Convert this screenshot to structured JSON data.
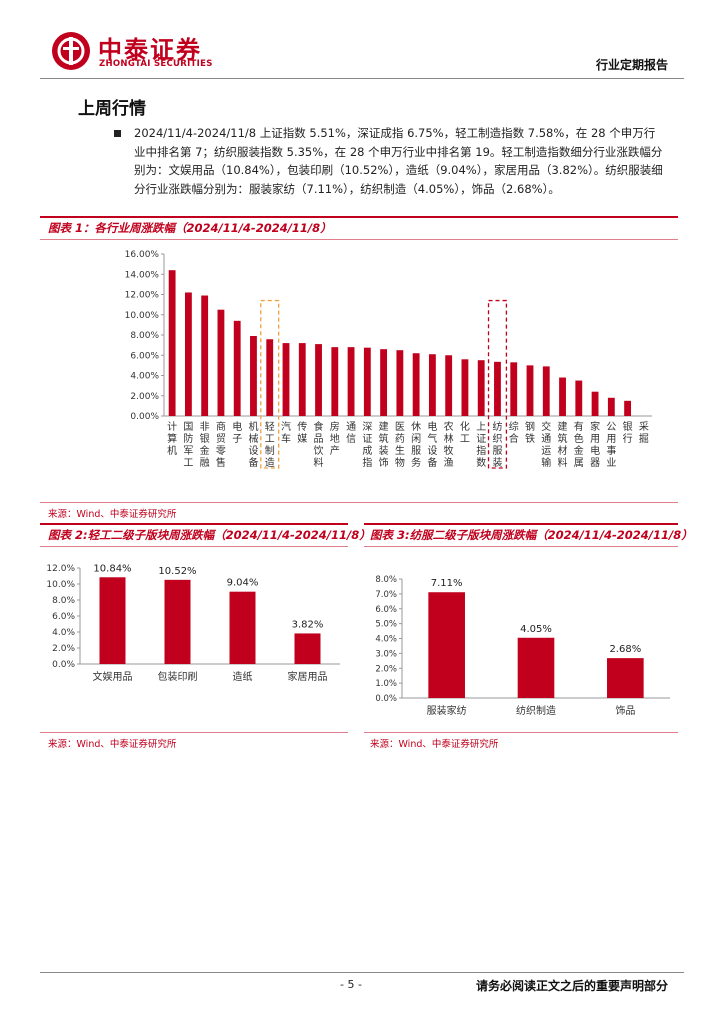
{
  "header": {
    "brand_cn": "中泰证券",
    "brand_en": "ZHONGTAI SECURITIES",
    "report_type": "行业定期报告",
    "brand_color": "#c0001d"
  },
  "section": {
    "title": "上周行情",
    "paragraph": "2024/11/4-2024/11/8 上证指数 5.51%，深证成指 6.75%，轻工制造指数 7.58%，在 28 个申万行业中排名第 7；纺织服装指数 5.35%，在 28 个申万行业中排名第 19。轻工制造指数细分行业涨跌幅分别为：文娱用品（10.84%），包装印刷（10.52%），造纸（9.04%），家居用品（3.82%）。纺织服装细分行业涨跌幅分别为：服装家纺（7.11%），纺织制造（4.05%），饰品（2.68%）。"
  },
  "figure1": {
    "title": "图表 1：各行业周涨跌幅（2024/11/4-2024/11/8）",
    "source": "来源：Wind、中泰证券研究所"
  },
  "figure2": {
    "title": "图表 2:轻工二级子版块周涨跌幅（2024/11/4-2024/11/8）",
    "source": "来源：Wind、中泰证券研究所"
  },
  "figure3": {
    "title": "图表 3:纺服二级子版块周涨跌幅（2024/11/4-2024/11/8）",
    "source": "来源：Wind、中泰证券研究所"
  },
  "footer": {
    "page_number": "- 5 -",
    "disclaimer": "请务必阅读正文之后的重要声明部分"
  },
  "chart_data": [
    {
      "type": "bar",
      "categories": [
        "计算机",
        "国防军工",
        "非银金融",
        "商贸零售",
        "电子",
        "机械设备",
        "轻工制造",
        "汽车",
        "传媒",
        "食品饮料",
        "房地产",
        "通信",
        "深证成指",
        "建筑装饰",
        "医药生物",
        "休闲服务",
        "电气设备",
        "农林牧渔",
        "化工",
        "上证指数",
        "纺织服装",
        "综合",
        "钢铁",
        "交通运输",
        "建筑材料",
        "有色金属",
        "家用电器",
        "公用事业",
        "银行",
        "采掘"
      ],
      "values": [
        14.4,
        12.2,
        11.9,
        10.5,
        9.4,
        7.9,
        7.58,
        7.2,
        7.2,
        7.1,
        6.8,
        6.8,
        6.75,
        6.6,
        6.5,
        6.2,
        6.1,
        6.0,
        5.6,
        5.51,
        5.35,
        5.3,
        5.0,
        4.9,
        3.8,
        3.5,
        2.4,
        1.8,
        1.5,
        0.0
      ],
      "highlight": [
        {
          "category": "轻工制造",
          "color": "#f0a040"
        },
        {
          "category": "纺织服装",
          "color": "#c0001d"
        }
      ],
      "ylim": [
        0,
        16
      ],
      "yticks": [
        "0.00%",
        "2.00%",
        "4.00%",
        "6.00%",
        "8.00%",
        "10.00%",
        "12.00%",
        "14.00%",
        "16.00%"
      ],
      "grid": false,
      "bar_color": "#c0001d"
    },
    {
      "type": "bar",
      "categories": [
        "文娱用品",
        "包装印刷",
        "造纸",
        "家居用品"
      ],
      "values": [
        10.84,
        10.52,
        9.04,
        3.82
      ],
      "data_labels": [
        "10.84%",
        "10.52%",
        "9.04%",
        "3.82%"
      ],
      "ylim": [
        0,
        12
      ],
      "yticks": [
        "0.0%",
        "2.0%",
        "4.0%",
        "6.0%",
        "8.0%",
        "10.0%",
        "12.0%"
      ],
      "grid": false,
      "bar_color": "#c0001d"
    },
    {
      "type": "bar",
      "categories": [
        "服装家纺",
        "纺织制造",
        "饰品"
      ],
      "values": [
        7.11,
        4.05,
        2.68
      ],
      "data_labels": [
        "7.11%",
        "4.05%",
        "2.68%"
      ],
      "ylim": [
        0,
        8
      ],
      "yticks": [
        "0.0%",
        "1.0%",
        "2.0%",
        "3.0%",
        "4.0%",
        "5.0%",
        "6.0%",
        "7.0%",
        "8.0%"
      ],
      "grid": false,
      "bar_color": "#c0001d"
    }
  ]
}
